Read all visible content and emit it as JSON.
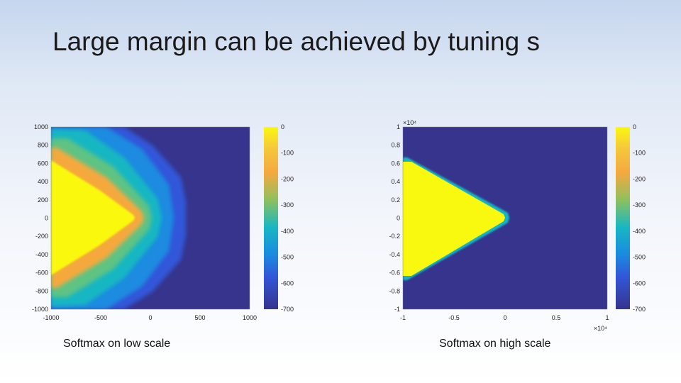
{
  "slide": {
    "title": "Large margin can be achieved by tuning s",
    "captions": [
      "Softmax on low scale",
      "Softmax on high scale"
    ]
  },
  "colors": {
    "background_class": "#36348c",
    "colormap": [
      "#36348c",
      "#3257d9",
      "#1a8be0",
      "#17b7c2",
      "#5ec383",
      "#bdbd3a",
      "#f5a93e",
      "#f9f80f"
    ]
  },
  "chart_data": [
    {
      "type": "heatmap",
      "caption": "Softmax on low scale",
      "xlim": [
        -1000,
        1000
      ],
      "ylim": [
        -1000,
        1000
      ],
      "x_ticks": [
        "-1000",
        "-500",
        "0",
        "500",
        "1000"
      ],
      "y_ticks": [
        "1000",
        "800",
        "600",
        "400",
        "200",
        "0",
        "-200",
        "-400",
        "-600",
        "-800",
        "-1000"
      ],
      "x_exponent": "",
      "y_exponent": "",
      "colorbar": {
        "range": [
          -700,
          0
        ],
        "ticks": [
          "0",
          "-100",
          "-200",
          "-300",
          "-400",
          "-500",
          "-600",
          "-700"
        ]
      },
      "region": {
        "shape": "wedge",
        "apex": [
          0,
          0
        ],
        "edge_width": "wide"
      }
    },
    {
      "type": "heatmap",
      "caption": "Softmax on high scale",
      "xlim": [
        -1,
        1
      ],
      "ylim": [
        -1,
        1
      ],
      "x_ticks": [
        "-1",
        "-0.5",
        "0",
        "0.5",
        "1"
      ],
      "y_ticks": [
        "1",
        "0.8",
        "0.6",
        "0.4",
        "0.2",
        "0",
        "-0.2",
        "-0.4",
        "-0.6",
        "-0.8",
        "-1"
      ],
      "x_exponent": "×10⁴",
      "y_exponent": "×10⁴",
      "colorbar": {
        "range": [
          -700,
          0
        ],
        "ticks": [
          "0",
          "-100",
          "-200",
          "-300",
          "-400",
          "-500",
          "-600",
          "-700"
        ]
      },
      "region": {
        "shape": "wedge",
        "apex": [
          0,
          0
        ],
        "edge_width": "sharp"
      }
    }
  ]
}
